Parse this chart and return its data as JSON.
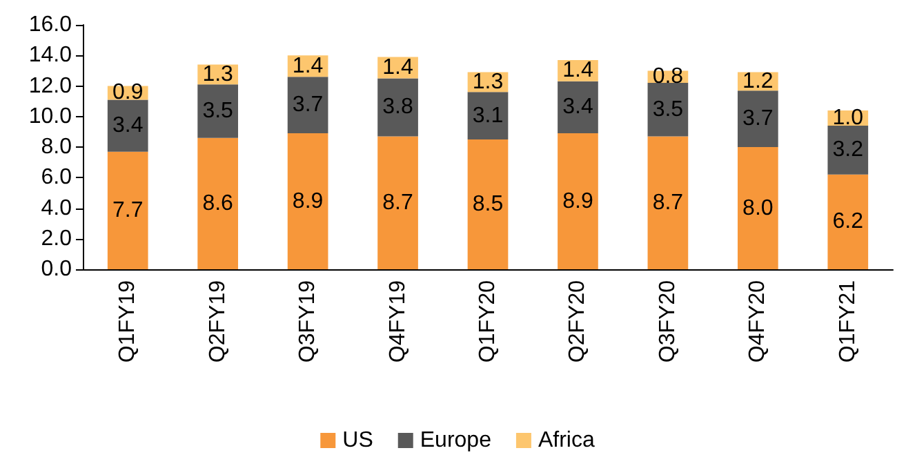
{
  "chart_data": {
    "type": "bar",
    "stacked": true,
    "grid": false,
    "legend": "bottom",
    "categories": [
      "Q1FY19",
      "Q2FY19",
      "Q3FY19",
      "Q4FY19",
      "Q1FY20",
      "Q2FY20",
      "Q3FY20",
      "Q4FY20",
      "Q1FY21"
    ],
    "series": [
      {
        "name": "US",
        "color": "#f7973a",
        "values": [
          7.7,
          8.6,
          8.9,
          8.7,
          8.5,
          8.9,
          8.7,
          8.0,
          6.2
        ],
        "value_labels": [
          "7.7",
          "8.6",
          "8.9",
          "8.7",
          "8.5",
          "8.9",
          "8.7",
          "8.0",
          "6.2"
        ]
      },
      {
        "name": "Europe",
        "color": "#595959",
        "values": [
          3.4,
          3.5,
          3.7,
          3.8,
          3.1,
          3.4,
          3.5,
          3.7,
          3.2
        ],
        "value_labels": [
          "3.4",
          "3.5",
          "3.7",
          "3.8",
          "3.1",
          "3.4",
          "3.5",
          "3.7",
          "3.2"
        ]
      },
      {
        "name": "Africa",
        "color": "#fdc66e",
        "values": [
          0.9,
          1.3,
          1.4,
          1.4,
          1.3,
          1.4,
          0.8,
          1.2,
          1.0
        ],
        "value_labels": [
          "0.9",
          "1.3",
          "1.4",
          "1.4",
          "1.3",
          "1.4",
          "0.8",
          "1.2",
          "1.0"
        ]
      }
    ],
    "ylim": [
      0,
      16
    ],
    "yticks": [
      {
        "value": 0,
        "label": "0.0"
      },
      {
        "value": 2,
        "label": "2.0"
      },
      {
        "value": 4,
        "label": "4.0"
      },
      {
        "value": 6,
        "label": "6.0"
      },
      {
        "value": 8,
        "label": "8.0"
      },
      {
        "value": 10,
        "label": "10.0"
      },
      {
        "value": 12,
        "label": "12.0"
      },
      {
        "value": 14,
        "label": "14.0"
      },
      {
        "value": 16,
        "label": "16.0"
      }
    ]
  }
}
